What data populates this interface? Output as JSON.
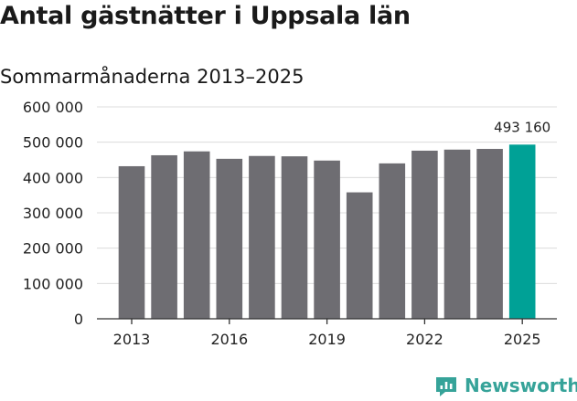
{
  "header": {
    "title": "Antal gästnätter i Uppsala län",
    "subtitle": "Sommarmånaderna 2013–2025"
  },
  "brand": {
    "name": "Newsworthy",
    "icon": "newsworthy-logo-icon",
    "color": "#36a399"
  },
  "chart_data": {
    "type": "bar",
    "title": "Antal gästnätter i Uppsala län",
    "subtitle": "Sommarmånaderna 2013–2025",
    "xlabel": "",
    "ylabel": "",
    "categories": [
      "2013",
      "2014",
      "2015",
      "2016",
      "2017",
      "2018",
      "2019",
      "2020",
      "2021",
      "2022",
      "2023",
      "2024",
      "2025"
    ],
    "values": [
      432000,
      463000,
      474000,
      453000,
      461000,
      460000,
      448000,
      358000,
      440000,
      476000,
      479000,
      481000,
      493160
    ],
    "ylim": [
      0,
      600000
    ],
    "yticks": [
      0,
      100000,
      200000,
      300000,
      400000,
      500000,
      600000
    ],
    "ytick_labels": [
      "0",
      "100 000",
      "200 000",
      "300 000",
      "400 000",
      "500 000",
      "600 000"
    ],
    "xtick_labels": [
      "2013",
      "2016",
      "2019",
      "2022",
      "2025"
    ],
    "annotations": [
      {
        "category": "2025",
        "text": "493 160"
      }
    ],
    "grid": true,
    "bar_color": "#6e6d72",
    "highlight_color": "#00a196",
    "highlight_category": "2025"
  }
}
